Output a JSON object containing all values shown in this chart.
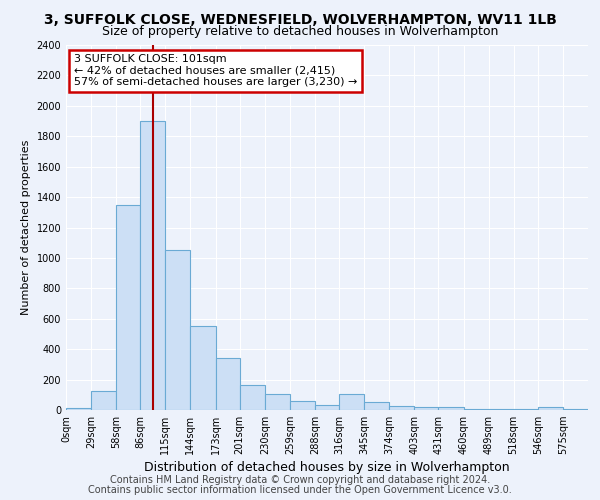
{
  "title": "3, SUFFOLK CLOSE, WEDNESFIELD, WOLVERHAMPTON, WV11 1LB",
  "subtitle": "Size of property relative to detached houses in Wolverhampton",
  "xlabel": "Distribution of detached houses by size in Wolverhampton",
  "ylabel": "Number of detached properties",
  "bin_edges": [
    0,
    29,
    58,
    86,
    115,
    144,
    173,
    201,
    230,
    259,
    288,
    316,
    345,
    374,
    403,
    431,
    460,
    489,
    518,
    546,
    575,
    604
  ],
  "bar_heights": [
    10,
    125,
    1350,
    1900,
    1050,
    550,
    340,
    165,
    105,
    60,
    30,
    105,
    50,
    25,
    20,
    20,
    5,
    5,
    5,
    20,
    5
  ],
  "tick_labels": [
    "0sqm",
    "29sqm",
    "58sqm",
    "86sqm",
    "115sqm",
    "144sqm",
    "173sqm",
    "201sqm",
    "230sqm",
    "259sqm",
    "288sqm",
    "316sqm",
    "345sqm",
    "374sqm",
    "403sqm",
    "431sqm",
    "460sqm",
    "489sqm",
    "518sqm",
    "546sqm",
    "575sqm"
  ],
  "bar_color": "#ccdff5",
  "bar_edge_color": "#6aaad4",
  "red_line_x": 101,
  "ylim": [
    0,
    2400
  ],
  "yticks": [
    0,
    200,
    400,
    600,
    800,
    1000,
    1200,
    1400,
    1600,
    1800,
    2000,
    2200,
    2400
  ],
  "annotation_title": "3 SUFFOLK CLOSE: 101sqm",
  "annotation_line1": "← 42% of detached houses are smaller (2,415)",
  "annotation_line2": "57% of semi-detached houses are larger (3,230) →",
  "annotation_box_color": "#ffffff",
  "annotation_box_edge_color": "#cc0000",
  "footer1": "Contains HM Land Registry data © Crown copyright and database right 2024.",
  "footer2": "Contains public sector information licensed under the Open Government Licence v3.0.",
  "background_color": "#edf2fb",
  "plot_background_color": "#edf2fb",
  "grid_color": "#ffffff",
  "title_fontsize": 10,
  "subtitle_fontsize": 9,
  "xlabel_fontsize": 9,
  "ylabel_fontsize": 8,
  "tick_fontsize": 7,
  "annotation_fontsize": 8,
  "footer_fontsize": 7
}
